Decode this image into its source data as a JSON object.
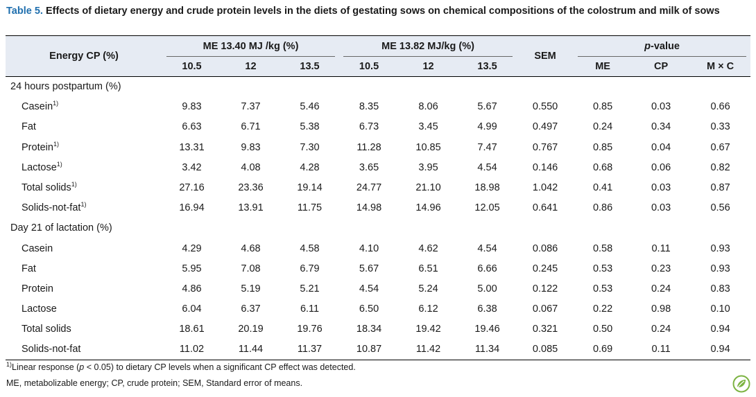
{
  "caption": {
    "label": "Table 5.",
    "text": " Effects of dietary energy and crude protein levels in the diets of gestating sows on chemical compositions of the colostrum and milk of sows"
  },
  "header": {
    "row_header": "Energy CP (%)",
    "me1": "ME 13.40 MJ /kg (%)",
    "me2": "ME 13.82 MJ/kg (%)",
    "sem": "SEM",
    "pvalue_italic": "p",
    "pvalue_rest": "-value",
    "sub": [
      "10.5",
      "12",
      "13.5",
      "10.5",
      "12",
      "13.5",
      "ME",
      "CP",
      "M × C"
    ]
  },
  "sections": [
    {
      "title": "24 hours postpartum (%)",
      "rows": [
        {
          "label": "Casein",
          "sup": "1)",
          "values": [
            "9.83",
            "7.37",
            "5.46",
            "8.35",
            "8.06",
            "5.67",
            "0.550",
            "0.85",
            "0.03",
            "0.66"
          ]
        },
        {
          "label": "Fat",
          "sup": "",
          "values": [
            "6.63",
            "6.71",
            "5.38",
            "6.73",
            "3.45",
            "4.99",
            "0.497",
            "0.24",
            "0.34",
            "0.33"
          ]
        },
        {
          "label": "Protein",
          "sup": "1)",
          "values": [
            "13.31",
            "9.83",
            "7.30",
            "11.28",
            "10.85",
            "7.47",
            "0.767",
            "0.85",
            "0.04",
            "0.67"
          ]
        },
        {
          "label": "Lactose",
          "sup": "1)",
          "values": [
            "3.42",
            "4.08",
            "4.28",
            "3.65",
            "3.95",
            "4.54",
            "0.146",
            "0.68",
            "0.06",
            "0.82"
          ]
        },
        {
          "label": "Total solids",
          "sup": "1)",
          "values": [
            "27.16",
            "23.36",
            "19.14",
            "24.77",
            "21.10",
            "18.98",
            "1.042",
            "0.41",
            "0.03",
            "0.87"
          ]
        },
        {
          "label": "Solids-not-fat",
          "sup": "1)",
          "values": [
            "16.94",
            "13.91",
            "11.75",
            "14.98",
            "14.96",
            "12.05",
            "0.641",
            "0.86",
            "0.03",
            "0.56"
          ]
        }
      ]
    },
    {
      "title": "Day 21 of lactation (%)",
      "rows": [
        {
          "label": "Casein",
          "sup": "",
          "values": [
            "4.29",
            "4.68",
            "4.58",
            "4.10",
            "4.62",
            "4.54",
            "0.086",
            "0.58",
            "0.11",
            "0.93"
          ]
        },
        {
          "label": "Fat",
          "sup": "",
          "values": [
            "5.95",
            "7.08",
            "6.79",
            "5.67",
            "6.51",
            "6.66",
            "0.245",
            "0.53",
            "0.23",
            "0.93"
          ]
        },
        {
          "label": "Protein",
          "sup": "",
          "values": [
            "4.86",
            "5.19",
            "5.21",
            "4.54",
            "5.24",
            "5.00",
            "0.122",
            "0.53",
            "0.24",
            "0.83"
          ]
        },
        {
          "label": "Lactose",
          "sup": "",
          "values": [
            "6.04",
            "6.37",
            "6.11",
            "6.50",
            "6.12",
            "6.38",
            "0.067",
            "0.22",
            "0.98",
            "0.10"
          ]
        },
        {
          "label": "Total solids",
          "sup": "",
          "values": [
            "18.61",
            "20.19",
            "19.76",
            "18.34",
            "19.42",
            "19.46",
            "0.321",
            "0.50",
            "0.24",
            "0.94"
          ]
        },
        {
          "label": "Solids-not-fat",
          "sup": "",
          "values": [
            "11.02",
            "11.44",
            "11.37",
            "10.87",
            "11.42",
            "11.34",
            "0.085",
            "0.69",
            "0.11",
            "0.94"
          ]
        }
      ]
    }
  ],
  "footnotes": {
    "note1_sup": "1)",
    "note1_a": "Linear response (",
    "note1_p": "p",
    "note1_b": " < 0.05) to dietary CP levels when a significant CP effect was detected.",
    "note2": "ME, metabolizable energy; CP, crude protein; SEM, Standard error of means."
  },
  "colors": {
    "caption_label": "#1f6fae",
    "header_bg": "#e6ebf3",
    "logo": "#7cb342"
  },
  "icons": {
    "logo": "journal-leaf-logo-icon"
  }
}
